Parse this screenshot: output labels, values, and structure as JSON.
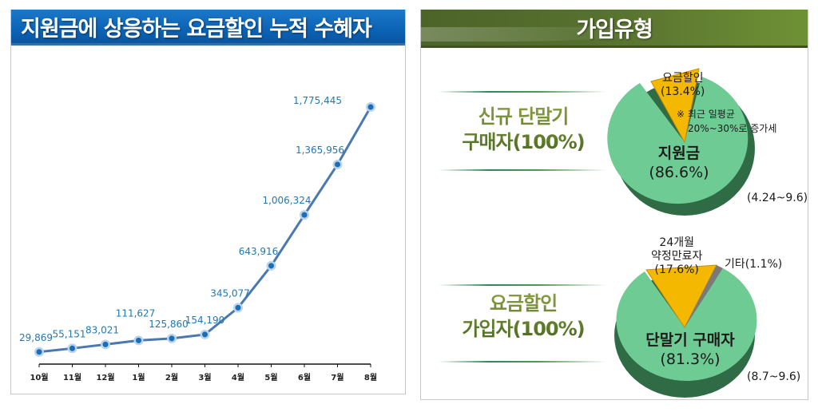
{
  "left_panel": {
    "title": "지원금에 상응하는 요금할인 누적 수혜자"
  },
  "right_panel": {
    "title": "가입유형",
    "groups": [
      {
        "label_line1": "신규 단말기",
        "label_line2": "구매자(100%)",
        "slices": [
          {
            "name": "지원금",
            "pct_label": "(86.6%)",
            "value": 86.6,
            "color": "#6ecb93"
          },
          {
            "name": "요금할인",
            "pct_label": "(13.4%)",
            "value": 13.4,
            "color": "#f5b800"
          }
        ],
        "note_line1": "※ 최근  일평균",
        "note_line2": "20%~30%로  증가세",
        "period": "(4.24~9.6)"
      },
      {
        "label_line1": "요금할인",
        "label_line2": "가입자(100%)",
        "slices": [
          {
            "name": "단말기 구매자",
            "pct_label": "(81.3%)",
            "value": 81.3,
            "color": "#6ecb93"
          },
          {
            "name_line1": "24개월",
            "name": "약정만료자",
            "pct_label": "(17.6%)",
            "value": 17.6,
            "color": "#f5b800"
          },
          {
            "name": "기타(1.1%)",
            "value": 1.1,
            "color": "#7a7a7a"
          }
        ],
        "period": "(8.7~9.6)"
      }
    ]
  },
  "chart_data": [
    {
      "type": "line",
      "title": "지원금에 상응하는 요금할인 누적 수혜자",
      "categories": [
        "10월",
        "11월",
        "12월",
        "1월",
        "2월",
        "3월",
        "4월",
        "5월",
        "6월",
        "7월",
        "8월"
      ],
      "values": [
        29869,
        55151,
        83021,
        111627,
        125860,
        154190,
        345077,
        643916,
        1006324,
        1365956,
        1775445
      ],
      "value_labels": [
        "29,869",
        "55,151",
        "83,021",
        "111,627",
        "125,860",
        "154,190",
        "345,077",
        "643,916",
        "1,006,324",
        "1,365,956",
        "1,775,445"
      ],
      "xlabel": "",
      "ylabel": "",
      "grid": false,
      "line_color": "#4a78b0",
      "label_color": "#1f78b4"
    },
    {
      "type": "pie",
      "title": "신규 단말기 구매자(100%)",
      "labels": [
        "지원금",
        "요금할인"
      ],
      "values": [
        86.6,
        13.4
      ],
      "annotation": "※ 최근 일평균 20%~30%로 증가세",
      "period": "(4.24~9.6)"
    },
    {
      "type": "pie",
      "title": "요금할인 가입자(100%)",
      "labels": [
        "단말기 구매자",
        "24개월 약정만료자",
        "기타"
      ],
      "values": [
        81.3,
        17.6,
        1.1
      ],
      "period": "(8.7~9.6)"
    }
  ]
}
